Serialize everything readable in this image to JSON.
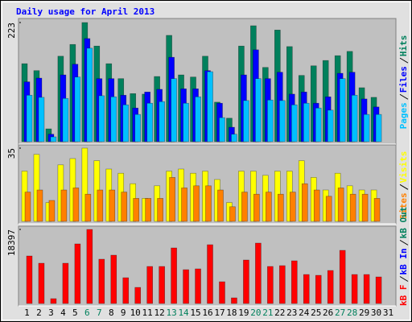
{
  "title": "Daily usage for April 2013",
  "categories": [
    "1",
    "2",
    "3",
    "4",
    "5",
    "6",
    "7",
    "8",
    "9",
    "10",
    "11",
    "12",
    "13",
    "14",
    "15",
    "16",
    "17",
    "18",
    "19",
    "20",
    "21",
    "22",
    "23",
    "24",
    "25",
    "26",
    "27",
    "28",
    "29",
    "30",
    "31"
  ],
  "label_colors": [
    "#000000",
    "#000000",
    "#000000",
    "#000000",
    "#000000",
    "#00805c",
    "#00805c",
    "#000000",
    "#000000",
    "#000000",
    "#000000",
    "#000000",
    "#00805c",
    "#00805c",
    "#000000",
    "#000000",
    "#000000",
    "#000000",
    "#000000",
    "#00805c",
    "#00805c",
    "#000000",
    "#000000",
    "#000000",
    "#000000",
    "#000000",
    "#00805c",
    "#00805c",
    "#000000",
    "#000000",
    "#000000"
  ],
  "chart_data": [
    {
      "type": "bar",
      "ylim": [
        0,
        223
      ],
      "yticks": [
        223
      ],
      "series": [
        {
          "name": "Pages",
          "color": "#00c0ff",
          "values": [
            87,
            83,
            9,
            81,
            121,
            175,
            86,
            84,
            69,
            51,
            72,
            75,
            118,
            72,
            84,
            131,
            45,
            14,
            77,
            118,
            78,
            77,
            69,
            72,
            63,
            59,
            118,
            87,
            51,
            51,
            null
          ]
        },
        {
          "name": "Files",
          "color": "#0000ff",
          "values": [
            112,
            119,
            14,
            125,
            145,
            193,
            118,
            118,
            87,
            63,
            93,
            98,
            158,
            99,
            99,
            133,
            72,
            27,
            125,
            172,
            118,
            130,
            89,
            93,
            72,
            84,
            128,
            130,
            80,
            65,
            null
          ]
        },
        {
          "name": "Hits",
          "color": "#00805c",
          "values": [
            146,
            133,
            24,
            160,
            182,
            223,
            179,
            146,
            118,
            90,
            89,
            122,
            199,
            125,
            121,
            160,
            74,
            44,
            179,
            217,
            139,
            209,
            178,
            124,
            142,
            152,
            161,
            169,
            101,
            83,
            null
          ]
        }
      ]
    },
    {
      "type": "bar",
      "ylim": [
        0,
        35
      ],
      "yticks": [
        35
      ],
      "series": [
        {
          "name": "Sites",
          "color": "#ff8000",
          "values": [
            14,
            15,
            10,
            15,
            16,
            13,
            15,
            15,
            14,
            11,
            11,
            11,
            21,
            16,
            17,
            17,
            15,
            7,
            14,
            13,
            14,
            13,
            14,
            18,
            15,
            12,
            16,
            13,
            13,
            11,
            null
          ]
        },
        {
          "name": "Visits",
          "color": "#ffff00",
          "values": [
            24,
            32,
            9,
            27,
            30,
            35,
            29,
            25,
            23,
            18,
            11,
            17,
            24,
            25,
            23,
            24,
            20,
            9,
            24,
            24,
            22,
            24,
            24,
            29,
            21,
            15,
            23,
            17,
            15,
            15,
            null
          ]
        }
      ]
    },
    {
      "type": "bar",
      "ylim": [
        0,
        18397
      ],
      "yticks": [
        18397
      ],
      "series": [
        {
          "name": "kB F",
          "color": "#ff0000",
          "values": [
            11800,
            10000,
            1200,
            10000,
            14800,
            18397,
            11000,
            12000,
            6400,
            4000,
            9200,
            9200,
            13800,
            8400,
            8600,
            14600,
            5400,
            1400,
            10800,
            15000,
            9200,
            9400,
            10600,
            7200,
            7000,
            8200,
            13200,
            7200,
            7200,
            6600,
            null
          ]
        },
        {
          "name": "kB In",
          "color": "#0000ff",
          "values": [
            0,
            0,
            0,
            0,
            0,
            0,
            0,
            0,
            0,
            0,
            0,
            0,
            0,
            0,
            0,
            0,
            0,
            0,
            0,
            0,
            0,
            0,
            0,
            0,
            0,
            0,
            0,
            0,
            0,
            0,
            null
          ]
        },
        {
          "name": "kB Out",
          "color": "#00805c",
          "values": [
            0,
            0,
            0,
            0,
            0,
            0,
            0,
            0,
            0,
            0,
            0,
            0,
            0,
            0,
            0,
            0,
            0,
            0,
            0,
            0,
            0,
            0,
            0,
            0,
            0,
            0,
            0,
            0,
            0,
            0,
            null
          ]
        }
      ]
    }
  ]
}
